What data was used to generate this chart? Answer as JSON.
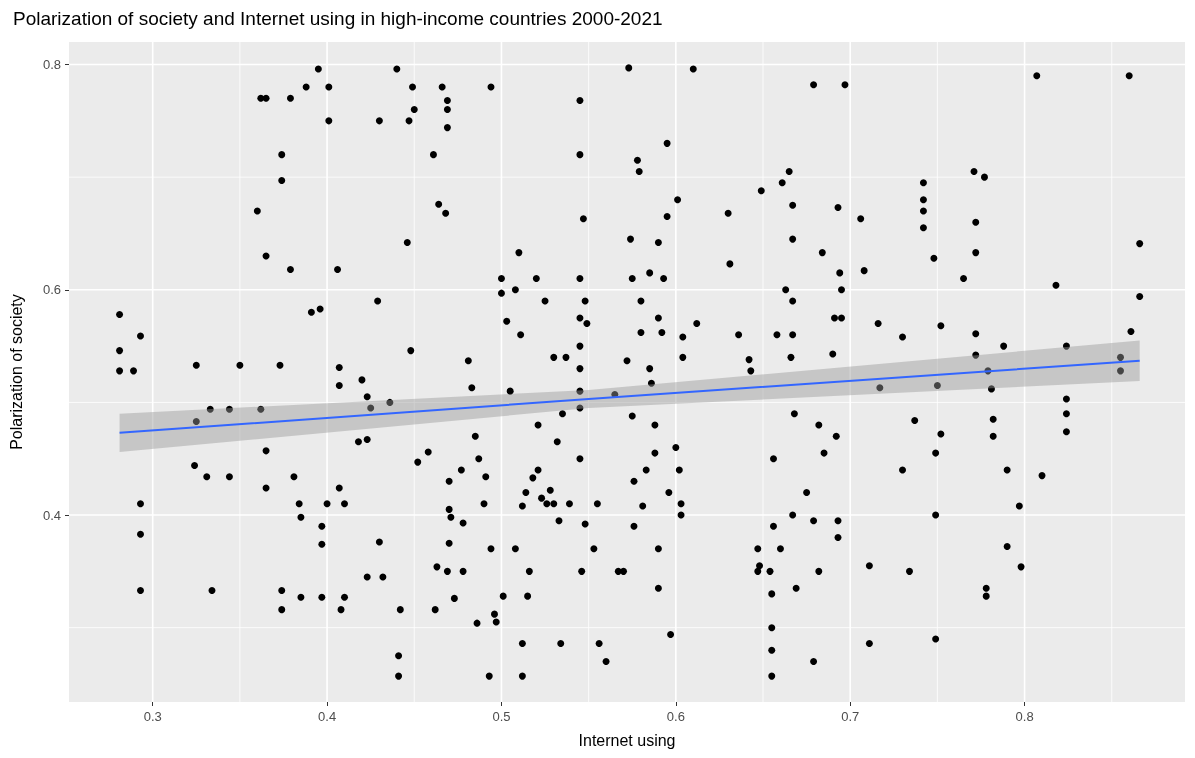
{
  "chart_data": {
    "type": "scatter",
    "title": "Polarization of society and Internet using in high-income countries 2000-2021",
    "xlabel": "Internet using",
    "ylabel": "Polarization of society",
    "xlim": [
      0.252,
      0.892
    ],
    "ylim": [
      0.234,
      0.82
    ],
    "xticks": [
      0.3,
      {
        "value": 0.35,
        "label": null
      },
      0.4,
      {
        "value": 0.45,
        "label": null
      },
      0.5,
      {
        "value": 0.55,
        "label": null
      },
      0.6,
      {
        "value": 0.65,
        "label": null
      },
      0.7,
      {
        "value": 0.75,
        "label": null
      },
      0.8,
      {
        "value": 0.85,
        "label": null
      }
    ],
    "yticks": [
      {
        "value": 0.3,
        "label": null
      },
      0.4,
      {
        "value": 0.5,
        "label": null
      },
      0.6,
      {
        "value": 0.7,
        "label": null
      },
      0.8
    ],
    "grid": true,
    "marker": "circle",
    "series": [
      {
        "color": "#000000",
        "x": [
          0.281,
          0.281,
          0.281,
          0.289,
          0.293,
          0.293,
          0.293,
          0.293,
          0.324,
          0.325,
          0.325,
          0.331,
          0.333,
          0.334,
          0.344,
          0.344,
          0.35,
          0.36,
          0.362,
          0.365,
          0.362,
          0.365,
          0.365,
          0.365,
          0.373,
          0.374,
          0.374,
          0.374,
          0.374,
          0.379,
          0.379,
          0.381,
          0.384,
          0.385,
          0.385,
          0.388,
          0.391,
          0.395,
          0.396,
          0.397,
          0.397,
          0.397,
          0.4,
          0.401,
          0.401,
          0.406,
          0.407,
          0.407,
          0.407,
          0.408,
          0.41,
          0.41,
          0.418,
          0.42,
          0.423,
          0.423,
          0.423,
          0.425,
          0.429,
          0.43,
          0.43,
          0.432,
          0.436,
          0.44,
          0.441,
          0.441,
          0.442,
          0.446,
          0.447,
          0.448,
          0.449,
          0.45,
          0.452,
          0.458,
          0.461,
          0.462,
          0.463,
          0.464,
          0.466,
          0.468,
          0.469,
          0.469,
          0.469,
          0.469,
          0.47,
          0.47,
          0.47,
          0.471,
          0.473,
          0.477,
          0.478,
          0.478,
          0.481,
          0.483,
          0.485,
          0.486,
          0.487,
          0.49,
          0.491,
          0.493,
          0.494,
          0.494,
          0.496,
          0.497,
          0.5,
          0.5,
          0.501,
          0.503,
          0.505,
          0.508,
          0.508,
          0.51,
          0.511,
          0.512,
          0.512,
          0.512,
          0.514,
          0.515,
          0.516,
          0.518,
          0.52,
          0.521,
          0.521,
          0.523,
          0.525,
          0.526,
          0.528,
          0.53,
          0.53,
          0.532,
          0.533,
          0.534,
          0.535,
          0.537,
          0.539,
          0.545,
          0.545,
          0.545,
          0.545,
          0.545,
          0.545,
          0.545,
          0.545,
          0.545,
          0.546,
          0.547,
          0.548,
          0.549,
          0.548,
          0.553,
          0.555,
          0.556,
          0.56,
          0.565,
          0.567,
          0.57,
          0.572,
          0.573,
          0.574,
          0.575,
          0.575,
          0.576,
          0.576,
          0.578,
          0.579,
          0.58,
          0.58,
          0.581,
          0.583,
          0.585,
          0.585,
          0.586,
          0.588,
          0.588,
          0.59,
          0.59,
          0.59,
          0.59,
          0.592,
          0.593,
          0.595,
          0.595,
          0.596,
          0.597,
          0.6,
          0.601,
          0.602,
          0.603,
          0.603,
          0.604,
          0.604,
          0.61,
          0.612,
          0.63,
          0.631,
          0.636,
          0.642,
          0.643,
          0.647,
          0.647,
          0.648,
          0.649,
          0.654,
          0.655,
          0.655,
          0.655,
          0.655,
          0.656,
          0.656,
          0.658,
          0.66,
          0.661,
          0.663,
          0.665,
          0.666,
          0.667,
          0.667,
          0.667,
          0.667,
          0.667,
          0.668,
          0.669,
          0.675,
          0.679,
          0.679,
          0.679,
          0.682,
          0.682,
          0.684,
          0.685,
          0.69,
          0.691,
          0.692,
          0.693,
          0.693,
          0.693,
          0.694,
          0.695,
          0.695,
          0.697,
          0.706,
          0.708,
          0.711,
          0.711,
          0.716,
          0.717,
          0.73,
          0.73,
          0.734,
          0.737,
          0.742,
          0.742,
          0.742,
          0.742,
          0.748,
          0.749,
          0.749,
          0.749,
          0.75,
          0.752,
          0.752,
          0.765,
          0.771,
          0.772,
          0.772,
          0.772,
          0.772,
          0.777,
          0.778,
          0.778,
          0.779,
          0.781,
          0.782,
          0.782,
          0.788,
          0.79,
          0.79,
          0.797,
          0.798,
          0.807,
          0.81,
          0.818,
          0.824,
          0.824,
          0.824,
          0.824,
          0.855,
          0.855,
          0.86,
          0.861,
          0.866,
          0.866
        ],
        "values": [
          0.578,
          0.546,
          0.528,
          0.528,
          0.559,
          0.41,
          0.383,
          0.333,
          0.444,
          0.533,
          0.483,
          0.434,
          0.494,
          0.333,
          0.494,
          0.434,
          0.533,
          0.67,
          0.77,
          0.77,
          0.494,
          0.63,
          0.457,
          0.424,
          0.533,
          0.72,
          0.697,
          0.333,
          0.316,
          0.618,
          0.77,
          0.434,
          0.41,
          0.398,
          0.327,
          0.78,
          0.58,
          0.796,
          0.583,
          0.39,
          0.374,
          0.327,
          0.41,
          0.75,
          0.78,
          0.618,
          0.531,
          0.515,
          0.424,
          0.316,
          0.41,
          0.327,
          0.465,
          0.52,
          0.505,
          0.467,
          0.345,
          0.495,
          0.59,
          0.75,
          0.376,
          0.345,
          0.5,
          0.796,
          0.275,
          0.257,
          0.316,
          0.642,
          0.75,
          0.546,
          0.78,
          0.76,
          0.447,
          0.456,
          0.72,
          0.316,
          0.354,
          0.676,
          0.78,
          0.668,
          0.768,
          0.744,
          0.76,
          0.35,
          0.43,
          0.405,
          0.375,
          0.398,
          0.326,
          0.44,
          0.35,
          0.393,
          0.537,
          0.513,
          0.47,
          0.304,
          0.45,
          0.41,
          0.434,
          0.257,
          0.78,
          0.37,
          0.312,
          0.305,
          0.61,
          0.597,
          0.328,
          0.572,
          0.51,
          0.6,
          0.37,
          0.633,
          0.56,
          0.408,
          0.286,
          0.257,
          0.42,
          0.328,
          0.35,
          0.433,
          0.61,
          0.48,
          0.44,
          0.415,
          0.59,
          0.41,
          0.422,
          0.54,
          0.41,
          0.465,
          0.395,
          0.286,
          0.49,
          0.54,
          0.41,
          0.768,
          0.72,
          0.61,
          0.575,
          0.55,
          0.53,
          0.51,
          0.495,
          0.45,
          0.35,
          0.663,
          0.59,
          0.57,
          0.392,
          0.37,
          0.41,
          0.286,
          0.27,
          0.507,
          0.35,
          0.35,
          0.537,
          0.797,
          0.645,
          0.61,
          0.488,
          0.43,
          0.39,
          0.715,
          0.705,
          0.59,
          0.562,
          0.408,
          0.44,
          0.615,
          0.53,
          0.517,
          0.48,
          0.455,
          0.642,
          0.575,
          0.37,
          0.335,
          0.562,
          0.61,
          0.73,
          0.665,
          0.42,
          0.294,
          0.46,
          0.68,
          0.44,
          0.41,
          0.4,
          0.558,
          0.54,
          0.796,
          0.57,
          0.668,
          0.623,
          0.56,
          0.538,
          0.528,
          0.37,
          0.35,
          0.355,
          0.688,
          0.35,
          0.33,
          0.3,
          0.28,
          0.257,
          0.39,
          0.45,
          0.56,
          0.37,
          0.695,
          0.6,
          0.705,
          0.54,
          0.675,
          0.645,
          0.59,
          0.56,
          0.4,
          0.49,
          0.335,
          0.42,
          0.782,
          0.395,
          0.27,
          0.35,
          0.48,
          0.633,
          0.455,
          0.543,
          0.575,
          0.47,
          0.395,
          0.38,
          0.673,
          0.615,
          0.6,
          0.575,
          0.782,
          0.663,
          0.617,
          0.355,
          0.286,
          0.57,
          0.513,
          0.558,
          0.44,
          0.35,
          0.484,
          0.695,
          0.68,
          0.67,
          0.655,
          0.628,
          0.455,
          0.4,
          0.29,
          0.515,
          0.568,
          0.472,
          0.61,
          0.705,
          0.66,
          0.633,
          0.561,
          0.542,
          0.7,
          0.335,
          0.328,
          0.528,
          0.512,
          0.485,
          0.47,
          0.55,
          0.44,
          0.372,
          0.408,
          0.354,
          0.79,
          0.435,
          0.604,
          0.55,
          0.503,
          0.49,
          0.474,
          0.54,
          0.528,
          0.79,
          0.563,
          0.641,
          0.594
        ]
      },
      {
        "type": "line",
        "color": "#3366ff",
        "marker": "none",
        "x": [
          0.281,
          0.55,
          0.866
        ],
        "values": [
          0.473,
          0.503,
          0.537
        ],
        "lower": [
          0.456,
          0.495,
          0.519
        ],
        "upper": [
          0.49,
          0.511,
          0.555
        ]
      }
    ]
  }
}
